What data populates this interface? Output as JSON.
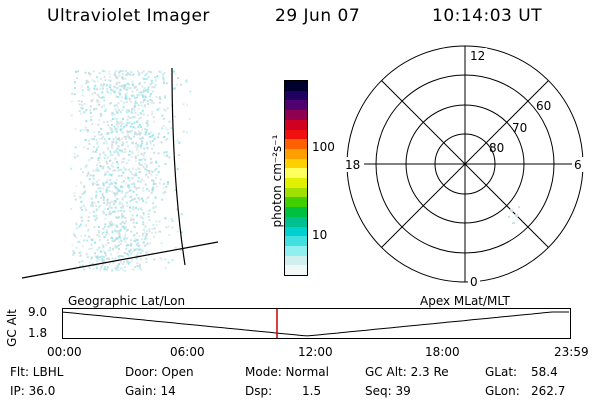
{
  "header": {
    "instrument": "Ultraviolet Imager",
    "date": "29 Jun 07",
    "time": "10:14:03 UT"
  },
  "colorbar": {
    "label": "photon cm⁻²s⁻¹",
    "ticks": [
      "100",
      "10"
    ],
    "colors": [
      "#000030",
      "#200060",
      "#500070",
      "#900050",
      "#d00020",
      "#f01010",
      "#ff6000",
      "#ffa000",
      "#ffd000",
      "#ffff60",
      "#e0f000",
      "#a0e000",
      "#40d000",
      "#00c040",
      "#00c090",
      "#00d0d0",
      "#40e0e0",
      "#90f0f0",
      "#d0f0f0",
      "#f0f8f8"
    ]
  },
  "polar": {
    "mlt_labels": {
      "top": "12",
      "left": "18",
      "right": "6",
      "bottom": "0"
    },
    "lat_labels": [
      "60",
      "70",
      "80"
    ]
  },
  "strip": {
    "y_axis_label": "GC Alt",
    "y_ticks": [
      "9.0",
      "1.8"
    ],
    "left_title": "Geographic Lat/Lon",
    "right_title": "Apex MLat/MLT",
    "x_ticks": [
      "00:00",
      "06:00",
      "12:00",
      "18:00",
      "23:59"
    ]
  },
  "info": {
    "flt": "Flt: LBHL",
    "ip": "IP: 36.0",
    "door": "Door: Open",
    "gain": "Gain: 14",
    "mode": "Mode: Normal",
    "dsp": "Dsp:",
    "dsp_value": "1.5",
    "gc_alt": "GC Alt: 2.3 Re",
    "seq": "Seq: 39",
    "glat_label": "GLat:",
    "glat_value": "58.4",
    "glon_label": "GLon:",
    "glon_value": "262.7"
  },
  "colors": {
    "marker": "#cc0000",
    "speckle_cyan": "#8fe6ee",
    "speckle_grey": "#c8dcdc"
  }
}
